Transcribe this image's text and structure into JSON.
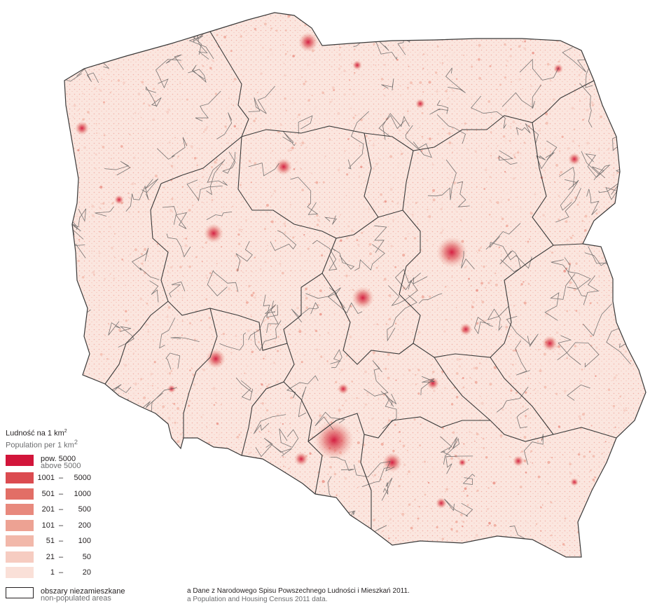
{
  "legend": {
    "title": "Ludność na 1 km",
    "title_unit_sup": "2",
    "subtitle": "Population per 1 km",
    "subtitle_unit_sup": "2",
    "classes": [
      {
        "pl": "pow. 5000",
        "en": "above 5000",
        "color": "#d2153a"
      },
      {
        "lo": "1001",
        "hi": "5000",
        "color": "#db4b50"
      },
      {
        "lo": "501",
        "hi": "1000",
        "color": "#e26e66"
      },
      {
        "lo": "201",
        "hi": "500",
        "color": "#e8897d"
      },
      {
        "lo": "101",
        "hi": "200",
        "color": "#eda293"
      },
      {
        "lo": "51",
        "hi": "100",
        "color": "#f2b8aa"
      },
      {
        "lo": "21",
        "hi": "50",
        "color": "#f6ccc1"
      },
      {
        "lo": "1",
        "hi": "20",
        "color": "#fae0d8"
      }
    ],
    "dash": "–",
    "non_populated_pl": "obszary niezamieszkane",
    "non_populated_en": "non-populated areas"
  },
  "source": {
    "pl": "a Dane z Narodowego Spisu Powszechnego Ludności i Mieszkań 2011.",
    "en": "a Population and Housing Census 2011 data."
  },
  "map": {
    "border_color": "#3a3a3a",
    "base_fill": "#fbe6df",
    "dot_color": "#e26e66"
  }
}
